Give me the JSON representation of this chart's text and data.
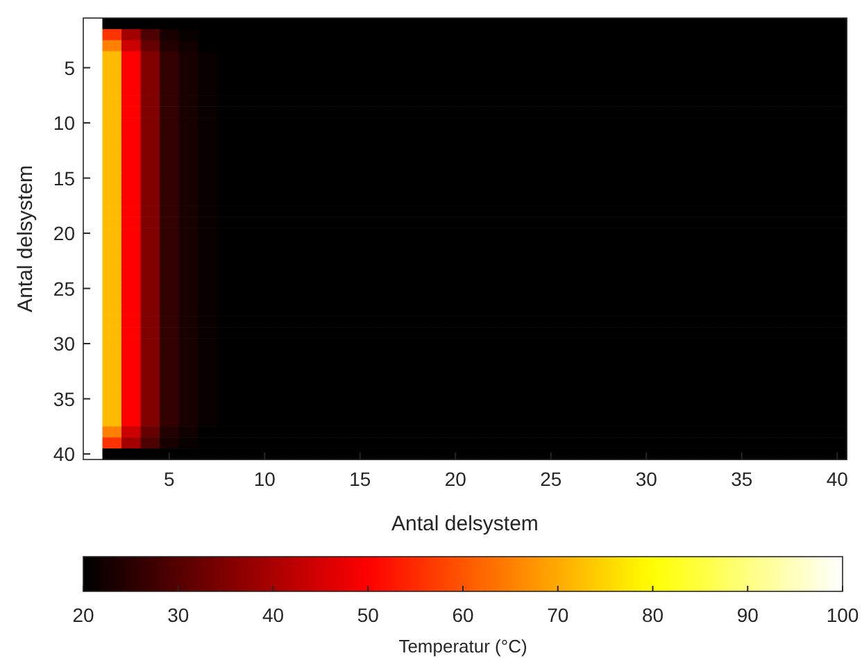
{
  "chart_data": {
    "type": "heatmap",
    "xlabel": "Antal delsystem",
    "ylabel": "Antal delsystem",
    "clabel": "Temperatur (°C)",
    "categories": [
      null,
      null,
      null,
      null,
      "5",
      null,
      null,
      null,
      null,
      "10",
      null,
      null,
      null,
      null,
      "15",
      null,
      null,
      null,
      null,
      "20",
      null,
      null,
      null,
      null,
      "25",
      null,
      null,
      null,
      null,
      "30",
      null,
      null,
      null,
      null,
      "35",
      null,
      null,
      null,
      null,
      "40"
    ],
    "y_categories": [
      null,
      null,
      null,
      null,
      "5",
      null,
      null,
      null,
      null,
      "10",
      null,
      null,
      null,
      null,
      "15",
      null,
      null,
      null,
      null,
      "20",
      null,
      null,
      null,
      null,
      "25",
      null,
      null,
      null,
      null,
      "30",
      null,
      null,
      null,
      null,
      "35",
      null,
      null,
      null,
      null,
      "40"
    ],
    "clim": [
      20,
      100
    ],
    "cticks": [
      20,
      30,
      40,
      50,
      60,
      70,
      80,
      90,
      100
    ],
    "cells": [
      [
        100,
        20,
        20,
        20,
        20,
        20,
        20,
        20,
        20,
        20,
        20,
        20,
        20,
        20,
        20,
        20,
        20,
        20,
        20,
        20,
        20,
        20,
        20,
        20,
        20,
        20,
        20,
        20,
        20,
        20,
        20,
        20,
        20,
        20,
        20,
        20,
        20,
        20,
        20,
        20
      ],
      [
        100,
        56,
        39,
        29,
        23,
        21,
        20,
        20,
        20,
        20,
        20,
        20,
        20,
        20,
        20,
        20,
        20,
        20,
        20,
        20,
        20,
        20,
        20,
        20,
        20,
        20,
        20,
        20,
        20,
        20,
        20,
        20,
        20,
        20,
        20,
        20,
        20,
        20,
        20,
        20
      ],
      [
        100,
        65,
        44,
        32,
        24,
        22,
        20,
        20,
        20,
        20,
        20,
        20,
        20,
        20,
        20,
        20,
        20,
        20,
        20,
        20,
        20,
        20,
        20,
        20,
        20,
        20,
        20,
        20,
        20,
        20,
        20,
        20,
        20,
        20,
        20,
        20,
        20,
        20,
        20,
        20
      ],
      [
        100,
        72,
        50,
        35,
        26,
        23,
        21,
        20,
        20,
        20,
        20,
        20,
        20,
        20,
        20,
        20,
        20,
        20,
        20,
        20,
        20,
        20,
        20,
        20,
        20,
        20,
        20,
        20,
        20,
        20,
        20,
        20,
        20,
        20,
        20,
        20,
        20,
        20,
        20,
        20
      ],
      [
        100,
        72,
        50,
        35,
        26,
        23,
        21,
        20,
        20,
        20,
        20,
        20,
        20,
        20,
        20,
        20,
        20,
        20,
        20,
        20,
        20,
        20,
        20,
        20,
        20,
        20,
        20,
        20,
        20,
        20,
        20,
        20,
        20,
        20,
        20,
        20,
        20,
        20,
        20,
        20
      ],
      [
        100,
        72,
        50,
        35,
        26,
        23,
        21,
        20,
        20,
        20,
        20,
        20,
        20,
        20,
        20,
        20,
        20,
        20,
        20,
        20,
        20,
        20,
        20,
        20,
        20,
        20,
        20,
        20,
        20,
        20,
        20,
        20,
        20,
        20,
        20,
        20,
        20,
        20,
        20,
        20
      ],
      [
        100,
        72,
        50,
        35,
        26,
        23,
        21,
        20,
        20,
        20,
        20,
        20,
        20,
        20,
        20,
        20,
        20,
        20,
        20,
        20,
        20,
        20,
        20,
        20,
        20,
        20,
        20,
        20,
        20,
        20,
        20,
        20,
        20,
        20,
        20,
        20,
        20,
        20,
        20,
        20
      ],
      [
        100,
        72,
        50,
        35,
        26,
        23,
        21,
        20,
        20,
        20,
        20,
        20,
        20,
        20,
        20,
        20,
        20,
        20,
        20,
        20,
        20,
        20,
        20,
        20,
        20,
        20,
        20,
        20,
        20,
        20,
        20,
        20,
        20,
        20,
        20,
        20,
        20,
        20,
        20,
        20
      ],
      [
        100,
        72,
        50,
        35,
        26,
        23,
        21,
        20,
        20,
        20,
        20,
        20,
        20,
        20,
        20,
        20,
        20,
        20,
        20,
        20,
        20,
        20,
        20,
        20,
        20,
        20,
        20,
        20,
        20,
        20,
        20,
        20,
        20,
        20,
        20,
        20,
        20,
        20,
        20,
        20
      ],
      [
        100,
        72,
        50,
        35,
        26,
        23,
        21,
        20,
        20,
        20,
        20,
        20,
        20,
        20,
        20,
        20,
        20,
        20,
        20,
        20,
        20,
        20,
        20,
        20,
        20,
        20,
        20,
        20,
        20,
        20,
        20,
        20,
        20,
        20,
        20,
        20,
        20,
        20,
        20,
        20
      ],
      [
        100,
        72,
        50,
        35,
        26,
        23,
        21,
        20,
        20,
        20,
        20,
        20,
        20,
        20,
        20,
        20,
        20,
        20,
        20,
        20,
        20,
        20,
        20,
        20,
        20,
        20,
        20,
        20,
        20,
        20,
        20,
        20,
        20,
        20,
        20,
        20,
        20,
        20,
        20,
        20
      ],
      [
        100,
        72,
        50,
        35,
        26,
        23,
        21,
        20,
        20,
        20,
        20,
        20,
        20,
        20,
        20,
        20,
        20,
        20,
        20,
        20,
        20,
        20,
        20,
        20,
        20,
        20,
        20,
        20,
        20,
        20,
        20,
        20,
        20,
        20,
        20,
        20,
        20,
        20,
        20,
        20
      ],
      [
        100,
        72,
        50,
        35,
        26,
        23,
        21,
        20,
        20,
        20,
        20,
        20,
        20,
        20,
        20,
        20,
        20,
        20,
        20,
        20,
        20,
        20,
        20,
        20,
        20,
        20,
        20,
        20,
        20,
        20,
        20,
        20,
        20,
        20,
        20,
        20,
        20,
        20,
        20,
        20
      ],
      [
        100,
        72,
        50,
        35,
        26,
        23,
        21,
        20,
        20,
        20,
        20,
        20,
        20,
        20,
        20,
        20,
        20,
        20,
        20,
        20,
        20,
        20,
        20,
        20,
        20,
        20,
        20,
        20,
        20,
        20,
        20,
        20,
        20,
        20,
        20,
        20,
        20,
        20,
        20,
        20
      ],
      [
        100,
        72,
        50,
        35,
        26,
        23,
        21,
        20,
        20,
        20,
        20,
        20,
        20,
        20,
        20,
        20,
        20,
        20,
        20,
        20,
        20,
        20,
        20,
        20,
        20,
        20,
        20,
        20,
        20,
        20,
        20,
        20,
        20,
        20,
        20,
        20,
        20,
        20,
        20,
        20
      ],
      [
        100,
        72,
        50,
        35,
        26,
        23,
        21,
        20,
        20,
        20,
        20,
        20,
        20,
        20,
        20,
        20,
        20,
        20,
        20,
        20,
        20,
        20,
        20,
        20,
        20,
        20,
        20,
        20,
        20,
        20,
        20,
        20,
        20,
        20,
        20,
        20,
        20,
        20,
        20,
        20
      ],
      [
        100,
        72,
        50,
        35,
        26,
        23,
        21,
        20,
        20,
        20,
        20,
        20,
        20,
        20,
        20,
        20,
        20,
        20,
        20,
        20,
        20,
        20,
        20,
        20,
        20,
        20,
        20,
        20,
        20,
        20,
        20,
        20,
        20,
        20,
        20,
        20,
        20,
        20,
        20,
        20
      ],
      [
        100,
        72,
        50,
        35,
        26,
        23,
        21,
        20,
        20,
        20,
        20,
        20,
        20,
        20,
        20,
        20,
        20,
        20,
        20,
        20,
        20,
        20,
        20,
        20,
        20,
        20,
        20,
        20,
        20,
        20,
        20,
        20,
        20,
        20,
        20,
        20,
        20,
        20,
        20,
        20
      ],
      [
        100,
        72,
        50,
        35,
        26,
        23,
        21,
        20,
        20,
        20,
        20,
        20,
        20,
        20,
        20,
        20,
        20,
        20,
        20,
        20,
        20,
        20,
        20,
        20,
        20,
        20,
        20,
        20,
        20,
        20,
        20,
        20,
        20,
        20,
        20,
        20,
        20,
        20,
        20,
        20
      ],
      [
        100,
        72,
        50,
        35,
        26,
        23,
        21,
        20,
        20,
        20,
        20,
        20,
        20,
        20,
        20,
        20,
        20,
        20,
        20,
        20,
        20,
        20,
        20,
        20,
        20,
        20,
        20,
        20,
        20,
        20,
        20,
        20,
        20,
        20,
        20,
        20,
        20,
        20,
        20,
        20
      ],
      [
        100,
        72,
        50,
        35,
        26,
        23,
        21,
        20,
        20,
        20,
        20,
        20,
        20,
        20,
        20,
        20,
        20,
        20,
        20,
        20,
        20,
        20,
        20,
        20,
        20,
        20,
        20,
        20,
        20,
        20,
        20,
        20,
        20,
        20,
        20,
        20,
        20,
        20,
        20,
        20
      ],
      [
        100,
        72,
        50,
        35,
        26,
        23,
        21,
        20,
        20,
        20,
        20,
        20,
        20,
        20,
        20,
        20,
        20,
        20,
        20,
        20,
        20,
        20,
        20,
        20,
        20,
        20,
        20,
        20,
        20,
        20,
        20,
        20,
        20,
        20,
        20,
        20,
        20,
        20,
        20,
        20
      ],
      [
        100,
        72,
        50,
        35,
        26,
        23,
        21,
        20,
        20,
        20,
        20,
        20,
        20,
        20,
        20,
        20,
        20,
        20,
        20,
        20,
        20,
        20,
        20,
        20,
        20,
        20,
        20,
        20,
        20,
        20,
        20,
        20,
        20,
        20,
        20,
        20,
        20,
        20,
        20,
        20
      ],
      [
        100,
        72,
        50,
        35,
        26,
        23,
        21,
        20,
        20,
        20,
        20,
        20,
        20,
        20,
        20,
        20,
        20,
        20,
        20,
        20,
        20,
        20,
        20,
        20,
        20,
        20,
        20,
        20,
        20,
        20,
        20,
        20,
        20,
        20,
        20,
        20,
        20,
        20,
        20,
        20
      ],
      [
        100,
        72,
        50,
        35,
        26,
        23,
        21,
        20,
        20,
        20,
        20,
        20,
        20,
        20,
        20,
        20,
        20,
        20,
        20,
        20,
        20,
        20,
        20,
        20,
        20,
        20,
        20,
        20,
        20,
        20,
        20,
        20,
        20,
        20,
        20,
        20,
        20,
        20,
        20,
        20
      ],
      [
        100,
        72,
        50,
        35,
        26,
        23,
        21,
        20,
        20,
        20,
        20,
        20,
        20,
        20,
        20,
        20,
        20,
        20,
        20,
        20,
        20,
        20,
        20,
        20,
        20,
        20,
        20,
        20,
        20,
        20,
        20,
        20,
        20,
        20,
        20,
        20,
        20,
        20,
        20,
        20
      ],
      [
        100,
        72,
        50,
        35,
        26,
        23,
        21,
        20,
        20,
        20,
        20,
        20,
        20,
        20,
        20,
        20,
        20,
        20,
        20,
        20,
        20,
        20,
        20,
        20,
        20,
        20,
        20,
        20,
        20,
        20,
        20,
        20,
        20,
        20,
        20,
        20,
        20,
        20,
        20,
        20
      ],
      [
        100,
        72,
        50,
        35,
        26,
        23,
        21,
        20,
        20,
        20,
        20,
        20,
        20,
        20,
        20,
        20,
        20,
        20,
        20,
        20,
        20,
        20,
        20,
        20,
        20,
        20,
        20,
        20,
        20,
        20,
        20,
        20,
        20,
        20,
        20,
        20,
        20,
        20,
        20,
        20
      ],
      [
        100,
        72,
        50,
        35,
        26,
        23,
        21,
        20,
        20,
        20,
        20,
        20,
        20,
        20,
        20,
        20,
        20,
        20,
        20,
        20,
        20,
        20,
        20,
        20,
        20,
        20,
        20,
        20,
        20,
        20,
        20,
        20,
        20,
        20,
        20,
        20,
        20,
        20,
        20,
        20
      ],
      [
        100,
        72,
        50,
        35,
        26,
        23,
        21,
        20,
        20,
        20,
        20,
        20,
        20,
        20,
        20,
        20,
        20,
        20,
        20,
        20,
        20,
        20,
        20,
        20,
        20,
        20,
        20,
        20,
        20,
        20,
        20,
        20,
        20,
        20,
        20,
        20,
        20,
        20,
        20,
        20
      ],
      [
        100,
        72,
        50,
        35,
        26,
        23,
        21,
        20,
        20,
        20,
        20,
        20,
        20,
        20,
        20,
        20,
        20,
        20,
        20,
        20,
        20,
        20,
        20,
        20,
        20,
        20,
        20,
        20,
        20,
        20,
        20,
        20,
        20,
        20,
        20,
        20,
        20,
        20,
        20,
        20
      ],
      [
        100,
        72,
        50,
        35,
        26,
        23,
        21,
        20,
        20,
        20,
        20,
        20,
        20,
        20,
        20,
        20,
        20,
        20,
        20,
        20,
        20,
        20,
        20,
        20,
        20,
        20,
        20,
        20,
        20,
        20,
        20,
        20,
        20,
        20,
        20,
        20,
        20,
        20,
        20,
        20
      ],
      [
        100,
        72,
        50,
        35,
        26,
        23,
        21,
        20,
        20,
        20,
        20,
        20,
        20,
        20,
        20,
        20,
        20,
        20,
        20,
        20,
        20,
        20,
        20,
        20,
        20,
        20,
        20,
        20,
        20,
        20,
        20,
        20,
        20,
        20,
        20,
        20,
        20,
        20,
        20,
        20
      ],
      [
        100,
        72,
        50,
        35,
        26,
        23,
        21,
        20,
        20,
        20,
        20,
        20,
        20,
        20,
        20,
        20,
        20,
        20,
        20,
        20,
        20,
        20,
        20,
        20,
        20,
        20,
        20,
        20,
        20,
        20,
        20,
        20,
        20,
        20,
        20,
        20,
        20,
        20,
        20,
        20
      ],
      [
        100,
        72,
        50,
        35,
        26,
        23,
        21,
        20,
        20,
        20,
        20,
        20,
        20,
        20,
        20,
        20,
        20,
        20,
        20,
        20,
        20,
        20,
        20,
        20,
        20,
        20,
        20,
        20,
        20,
        20,
        20,
        20,
        20,
        20,
        20,
        20,
        20,
        20,
        20,
        20
      ],
      [
        100,
        72,
        50,
        35,
        26,
        23,
        21,
        20,
        20,
        20,
        20,
        20,
        20,
        20,
        20,
        20,
        20,
        20,
        20,
        20,
        20,
        20,
        20,
        20,
        20,
        20,
        20,
        20,
        20,
        20,
        20,
        20,
        20,
        20,
        20,
        20,
        20,
        20,
        20,
        20
      ],
      [
        100,
        72,
        50,
        35,
        26,
        23,
        21,
        20,
        20,
        20,
        20,
        20,
        20,
        20,
        20,
        20,
        20,
        20,
        20,
        20,
        20,
        20,
        20,
        20,
        20,
        20,
        20,
        20,
        20,
        20,
        20,
        20,
        20,
        20,
        20,
        20,
        20,
        20,
        20,
        20
      ],
      [
        100,
        65,
        44,
        32,
        24,
        22,
        20,
        20,
        20,
        20,
        20,
        20,
        20,
        20,
        20,
        20,
        20,
        20,
        20,
        20,
        20,
        20,
        20,
        20,
        20,
        20,
        20,
        20,
        20,
        20,
        20,
        20,
        20,
        20,
        20,
        20,
        20,
        20,
        20,
        20
      ],
      [
        100,
        56,
        39,
        29,
        23,
        21,
        20,
        20,
        20,
        20,
        20,
        20,
        20,
        20,
        20,
        20,
        20,
        20,
        20,
        20,
        20,
        20,
        20,
        20,
        20,
        20,
        20,
        20,
        20,
        20,
        20,
        20,
        20,
        20,
        20,
        20,
        20,
        20,
        20,
        20
      ],
      [
        100,
        20,
        20,
        20,
        20,
        20,
        20,
        20,
        20,
        20,
        20,
        20,
        20,
        20,
        20,
        20,
        20,
        20,
        20,
        20,
        20,
        20,
        20,
        20,
        20,
        20,
        20,
        20,
        20,
        20,
        20,
        20,
        20,
        20,
        20,
        20,
        20,
        20,
        20,
        20
      ]
    ]
  }
}
